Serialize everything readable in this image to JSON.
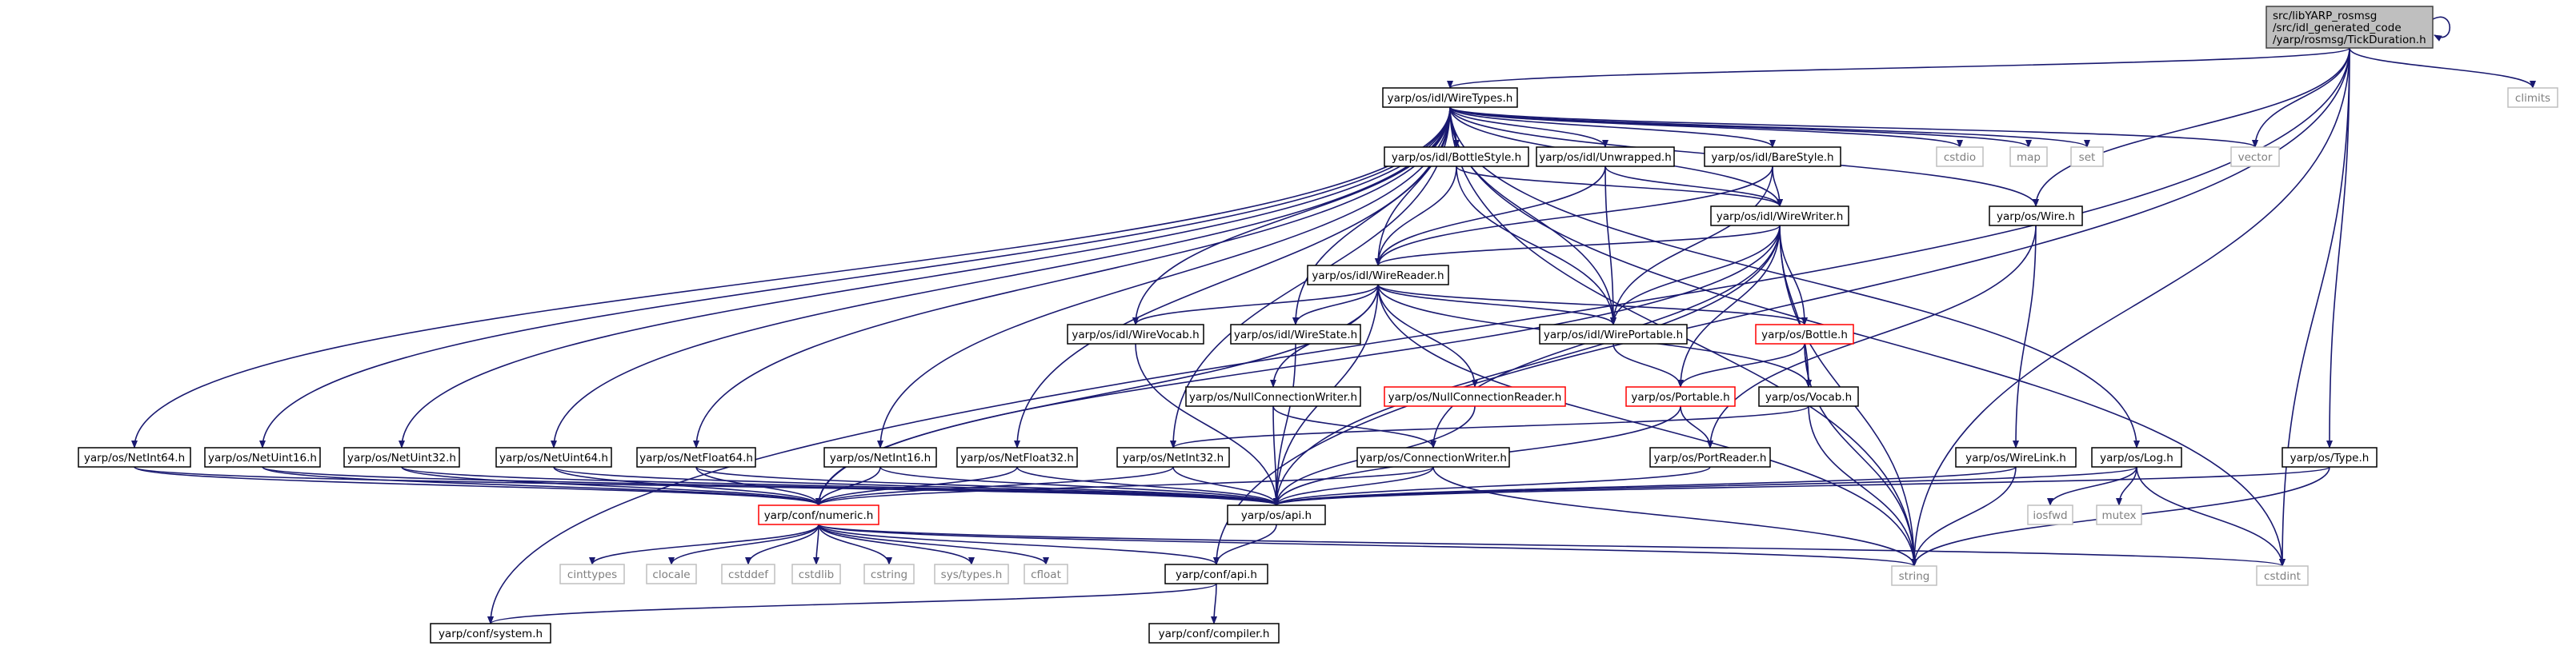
{
  "graph": {
    "root": "root",
    "nodes": {
      "root": {
        "lines": [
          "src/libYARP_rosmsg",
          "/src/idl_generated_code",
          "/yarp/rosmsg/TickDuration.h"
        ],
        "style": "root"
      },
      "climits": {
        "lines": [
          "climits"
        ],
        "style": "gray"
      },
      "wiretypes": {
        "lines": [
          "yarp/os/idl/WireTypes.h"
        ],
        "style": "normal"
      },
      "vector": {
        "lines": [
          "vector"
        ],
        "style": "gray"
      },
      "set": {
        "lines": [
          "set"
        ],
        "style": "gray"
      },
      "map": {
        "lines": [
          "map"
        ],
        "style": "gray"
      },
      "cstdio": {
        "lines": [
          "cstdio"
        ],
        "style": "gray"
      },
      "bottlestyle": {
        "lines": [
          "yarp/os/idl/BottleStyle.h"
        ],
        "style": "normal"
      },
      "unwrapped": {
        "lines": [
          "yarp/os/idl/Unwrapped.h"
        ],
        "style": "normal"
      },
      "barestyle": {
        "lines": [
          "yarp/os/idl/BareStyle.h"
        ],
        "style": "normal"
      },
      "wirewriter": {
        "lines": [
          "yarp/os/idl/WireWriter.h"
        ],
        "style": "normal"
      },
      "wire": {
        "lines": [
          "yarp/os/Wire.h"
        ],
        "style": "normal"
      },
      "wirereader": {
        "lines": [
          "yarp/os/idl/WireReader.h"
        ],
        "style": "normal"
      },
      "wirevocab": {
        "lines": [
          "yarp/os/idl/WireVocab.h"
        ],
        "style": "normal"
      },
      "wirestate": {
        "lines": [
          "yarp/os/idl/WireState.h"
        ],
        "style": "normal"
      },
      "wireportable": {
        "lines": [
          "yarp/os/idl/WirePortable.h"
        ],
        "style": "normal"
      },
      "bottle": {
        "lines": [
          "yarp/os/Bottle.h"
        ],
        "style": "red"
      },
      "nullconnwriter": {
        "lines": [
          "yarp/os/NullConnectionWriter.h"
        ],
        "style": "normal"
      },
      "nullconnreader": {
        "lines": [
          "yarp/os/NullConnectionReader.h"
        ],
        "style": "red"
      },
      "portable": {
        "lines": [
          "yarp/os/Portable.h"
        ],
        "style": "red"
      },
      "vocab": {
        "lines": [
          "yarp/os/Vocab.h"
        ],
        "style": "normal"
      },
      "netint64": {
        "lines": [
          "yarp/os/NetInt64.h"
        ],
        "style": "normal"
      },
      "netuint16": {
        "lines": [
          "yarp/os/NetUint16.h"
        ],
        "style": "normal"
      },
      "netuint32": {
        "lines": [
          "yarp/os/NetUint32.h"
        ],
        "style": "normal"
      },
      "netuint64": {
        "lines": [
          "yarp/os/NetUint64.h"
        ],
        "style": "normal"
      },
      "netfloat64": {
        "lines": [
          "yarp/os/NetFloat64.h"
        ],
        "style": "normal"
      },
      "netint16": {
        "lines": [
          "yarp/os/NetInt16.h"
        ],
        "style": "normal"
      },
      "netfloat32": {
        "lines": [
          "yarp/os/NetFloat32.h"
        ],
        "style": "normal"
      },
      "netint32": {
        "lines": [
          "yarp/os/NetInt32.h"
        ],
        "style": "normal"
      },
      "connwriter": {
        "lines": [
          "yarp/os/ConnectionWriter.h"
        ],
        "style": "normal"
      },
      "portreader": {
        "lines": [
          "yarp/os/PortReader.h"
        ],
        "style": "normal"
      },
      "wirelink": {
        "lines": [
          "yarp/os/WireLink.h"
        ],
        "style": "normal"
      },
      "log": {
        "lines": [
          "yarp/os/Log.h"
        ],
        "style": "normal"
      },
      "type": {
        "lines": [
          "yarp/os/Type.h"
        ],
        "style": "normal"
      },
      "iosfwd": {
        "lines": [
          "iosfwd"
        ],
        "style": "gray"
      },
      "mutex": {
        "lines": [
          "mutex"
        ],
        "style": "gray"
      },
      "numeric": {
        "lines": [
          "yarp/conf/numeric.h"
        ],
        "style": "red"
      },
      "osapi": {
        "lines": [
          "yarp/os/api.h"
        ],
        "style": "normal"
      },
      "cinttypes": {
        "lines": [
          "cinttypes"
        ],
        "style": "gray"
      },
      "clocale": {
        "lines": [
          "clocale"
        ],
        "style": "gray"
      },
      "cstddef": {
        "lines": [
          "cstddef"
        ],
        "style": "gray"
      },
      "cstdlib": {
        "lines": [
          "cstdlib"
        ],
        "style": "gray"
      },
      "cstring": {
        "lines": [
          "cstring"
        ],
        "style": "gray"
      },
      "systypes": {
        "lines": [
          "sys/types.h"
        ],
        "style": "gray"
      },
      "cfloat": {
        "lines": [
          "cfloat"
        ],
        "style": "gray"
      },
      "string": {
        "lines": [
          "string"
        ],
        "style": "gray"
      },
      "cstdint": {
        "lines": [
          "cstdint"
        ],
        "style": "gray"
      },
      "confapi": {
        "lines": [
          "yarp/conf/api.h"
        ],
        "style": "normal"
      },
      "confsystem": {
        "lines": [
          "yarp/conf/system.h"
        ],
        "style": "normal"
      },
      "confcompiler": {
        "lines": [
          "yarp/conf/compiler.h"
        ],
        "style": "normal"
      }
    },
    "edges": [
      [
        "root",
        "root"
      ],
      [
        "root",
        "climits"
      ],
      [
        "root",
        "wiretypes"
      ],
      [
        "root",
        "vector"
      ],
      [
        "root",
        "wire"
      ],
      [
        "root",
        "type"
      ],
      [
        "root",
        "string"
      ],
      [
        "root",
        "cstdint"
      ],
      [
        "root",
        "confapi"
      ],
      [
        "root",
        "confsystem"
      ],
      [
        "wiretypes",
        "vector"
      ],
      [
        "wiretypes",
        "set"
      ],
      [
        "wiretypes",
        "map"
      ],
      [
        "wiretypes",
        "cstdio"
      ],
      [
        "wiretypes",
        "bottlestyle"
      ],
      [
        "wiretypes",
        "unwrapped"
      ],
      [
        "wiretypes",
        "barestyle"
      ],
      [
        "wiretypes",
        "wirewriter"
      ],
      [
        "wiretypes",
        "wire"
      ],
      [
        "wiretypes",
        "wirereader"
      ],
      [
        "wiretypes",
        "wirevocab"
      ],
      [
        "wiretypes",
        "wirestate"
      ],
      [
        "wiretypes",
        "wireportable"
      ],
      [
        "wiretypes",
        "netint64"
      ],
      [
        "wiretypes",
        "netuint16"
      ],
      [
        "wiretypes",
        "netuint32"
      ],
      [
        "wiretypes",
        "netuint64"
      ],
      [
        "wiretypes",
        "netfloat64"
      ],
      [
        "wiretypes",
        "netint16"
      ],
      [
        "wiretypes",
        "netfloat32"
      ],
      [
        "wiretypes",
        "netint32"
      ],
      [
        "wiretypes",
        "log"
      ],
      [
        "wiretypes",
        "string"
      ],
      [
        "wiretypes",
        "cstdint"
      ],
      [
        "bottlestyle",
        "wirereader"
      ],
      [
        "bottlestyle",
        "wirewriter"
      ],
      [
        "bottlestyle",
        "wireportable"
      ],
      [
        "unwrapped",
        "wirereader"
      ],
      [
        "unwrapped",
        "wirewriter"
      ],
      [
        "unwrapped",
        "wireportable"
      ],
      [
        "barestyle",
        "wirereader"
      ],
      [
        "barestyle",
        "wirewriter"
      ],
      [
        "barestyle",
        "wireportable"
      ],
      [
        "wirewriter",
        "wirereader"
      ],
      [
        "wirewriter",
        "wireportable"
      ],
      [
        "wirewriter",
        "bottle"
      ],
      [
        "wirewriter",
        "vocab"
      ],
      [
        "wirewriter",
        "numeric"
      ],
      [
        "wirewriter",
        "connwriter"
      ],
      [
        "wirewriter",
        "string"
      ],
      [
        "wirewriter",
        "osapi"
      ],
      [
        "wirewriter",
        "portable"
      ],
      [
        "wire",
        "portreader"
      ],
      [
        "wire",
        "wirelink"
      ],
      [
        "wirereader",
        "wirevocab"
      ],
      [
        "wirereader",
        "wirestate"
      ],
      [
        "wirereader",
        "wireportable"
      ],
      [
        "wirereader",
        "bottle"
      ],
      [
        "wirereader",
        "nullconnwriter"
      ],
      [
        "wirereader",
        "nullconnreader"
      ],
      [
        "wirereader",
        "vocab"
      ],
      [
        "wirereader",
        "numeric"
      ],
      [
        "wirereader",
        "string"
      ],
      [
        "wirereader",
        "osapi"
      ],
      [
        "wirevocab",
        "osapi"
      ],
      [
        "wirestate",
        "osapi"
      ],
      [
        "wireportable",
        "portable"
      ],
      [
        "bottle",
        "portable"
      ],
      [
        "bottle",
        "vocab"
      ],
      [
        "bottle",
        "string"
      ],
      [
        "nullconnwriter",
        "connwriter"
      ],
      [
        "nullconnwriter",
        "osapi"
      ],
      [
        "nullconnreader",
        "osapi"
      ],
      [
        "portable",
        "portreader"
      ],
      [
        "portable",
        "osapi"
      ],
      [
        "vocab",
        "string"
      ],
      [
        "vocab",
        "netint32"
      ],
      [
        "netint64",
        "numeric"
      ],
      [
        "netint64",
        "osapi"
      ],
      [
        "netuint16",
        "numeric"
      ],
      [
        "netuint16",
        "osapi"
      ],
      [
        "netuint32",
        "numeric"
      ],
      [
        "netuint32",
        "osapi"
      ],
      [
        "netuint64",
        "numeric"
      ],
      [
        "netuint64",
        "osapi"
      ],
      [
        "netfloat64",
        "numeric"
      ],
      [
        "netfloat64",
        "osapi"
      ],
      [
        "netint16",
        "numeric"
      ],
      [
        "netint16",
        "osapi"
      ],
      [
        "netfloat32",
        "numeric"
      ],
      [
        "netfloat32",
        "osapi"
      ],
      [
        "netint32",
        "numeric"
      ],
      [
        "netint32",
        "osapi"
      ],
      [
        "connwriter",
        "osapi"
      ],
      [
        "connwriter",
        "string"
      ],
      [
        "connwriter",
        "numeric"
      ],
      [
        "portreader",
        "osapi"
      ],
      [
        "wirelink",
        "osapi"
      ],
      [
        "wirelink",
        "string"
      ],
      [
        "log",
        "osapi"
      ],
      [
        "log",
        "iosfwd"
      ],
      [
        "log",
        "mutex"
      ],
      [
        "log",
        "cstdint"
      ],
      [
        "type",
        "osapi"
      ],
      [
        "type",
        "string"
      ],
      [
        "numeric",
        "cinttypes"
      ],
      [
        "numeric",
        "clocale"
      ],
      [
        "numeric",
        "cstddef"
      ],
      [
        "numeric",
        "cstdlib"
      ],
      [
        "numeric",
        "cstring"
      ],
      [
        "numeric",
        "systypes"
      ],
      [
        "numeric",
        "cfloat"
      ],
      [
        "numeric",
        "string"
      ],
      [
        "numeric",
        "cstdint"
      ],
      [
        "numeric",
        "confapi"
      ],
      [
        "osapi",
        "confapi"
      ],
      [
        "confapi",
        "confsystem"
      ],
      [
        "confapi",
        "confcompiler"
      ]
    ]
  }
}
